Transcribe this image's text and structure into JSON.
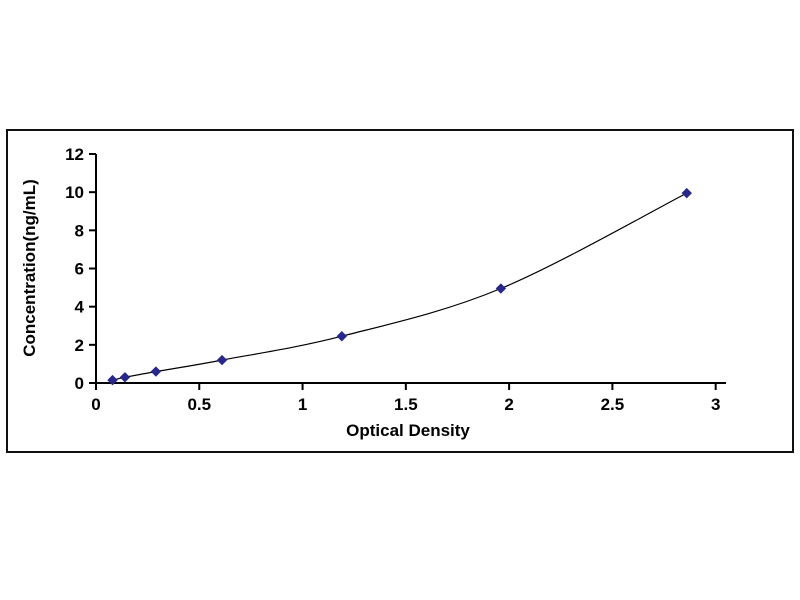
{
  "chart_data": {
    "type": "line",
    "title": "",
    "xlabel": "Optical Density",
    "ylabel": "Concentration(ng/mL)",
    "xlim": [
      0,
      3.05
    ],
    "ylim": [
      0,
      12
    ],
    "x_ticks": [
      0,
      0.5,
      1,
      1.5,
      2,
      2.5,
      3
    ],
    "y_ticks": [
      0,
      2,
      4,
      6,
      8,
      10,
      12
    ],
    "grid": false,
    "legend": "none",
    "marker": "diamond",
    "marker_color": "#28288a",
    "line_color": "#000000",
    "frame_color": "#111111",
    "background_color": "#ffffff",
    "points": [
      {
        "x": 0.08,
        "y": 0.15
      },
      {
        "x": 0.14,
        "y": 0.3
      },
      {
        "x": 0.29,
        "y": 0.6
      },
      {
        "x": 0.61,
        "y": 1.2
      },
      {
        "x": 1.19,
        "y": 2.45
      },
      {
        "x": 1.96,
        "y": 4.95
      },
      {
        "x": 2.86,
        "y": 9.95
      }
    ]
  }
}
